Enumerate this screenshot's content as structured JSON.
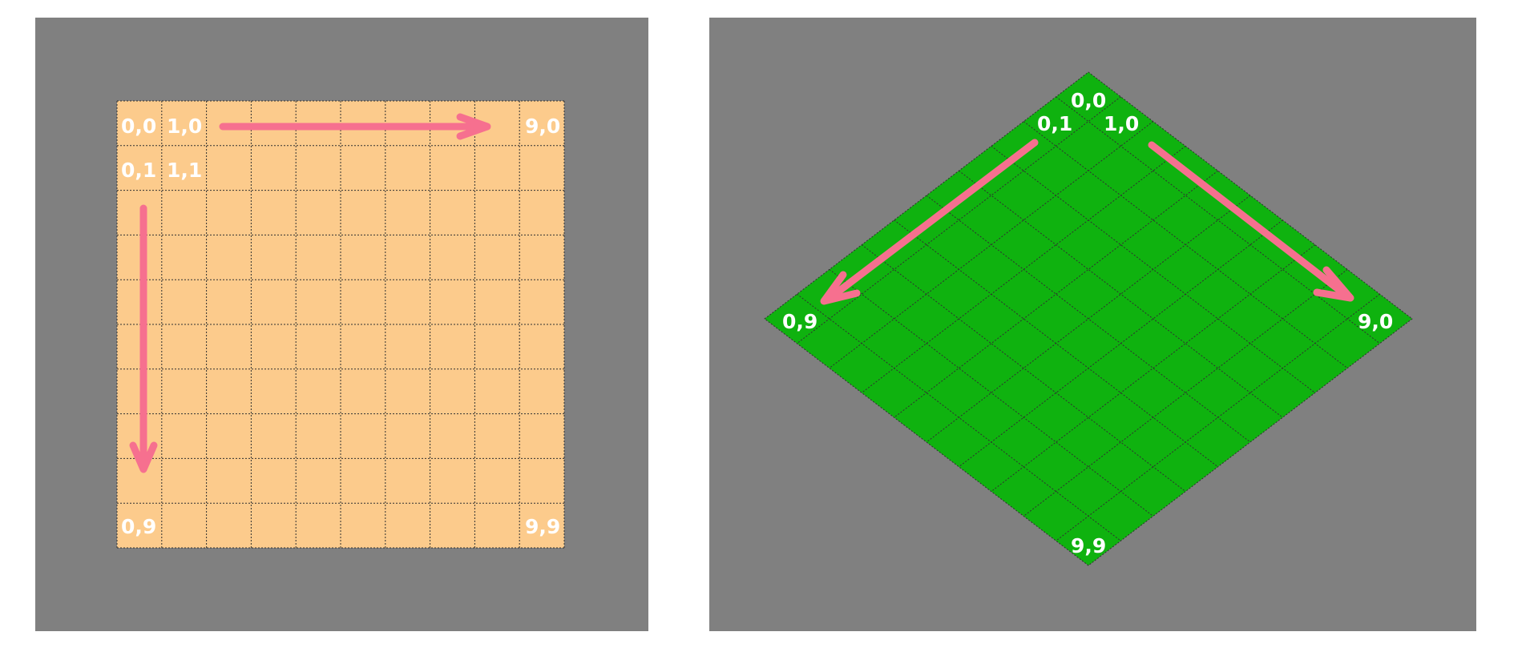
{
  "colors": {
    "panel_bg": "#808080",
    "square_tile": "#fccb8c",
    "iso_tile": "#0fb20f",
    "arrow": "#f6708f",
    "label": "#ffffff",
    "grid_line": "#303030"
  },
  "grid": {
    "cols": 10,
    "rows": 10
  },
  "square_view": {
    "labels": {
      "c00": "0,0",
      "c10": "1,0",
      "c90": "9,0",
      "c01": "0,1",
      "c11": "1,1",
      "c09": "0,9",
      "c99": "9,9"
    }
  },
  "iso_view": {
    "labels": {
      "c00": "0,0",
      "c01": "0,1",
      "c10": "1,0",
      "c09": "0,9",
      "c90": "9,0",
      "c99": "9,9"
    }
  }
}
